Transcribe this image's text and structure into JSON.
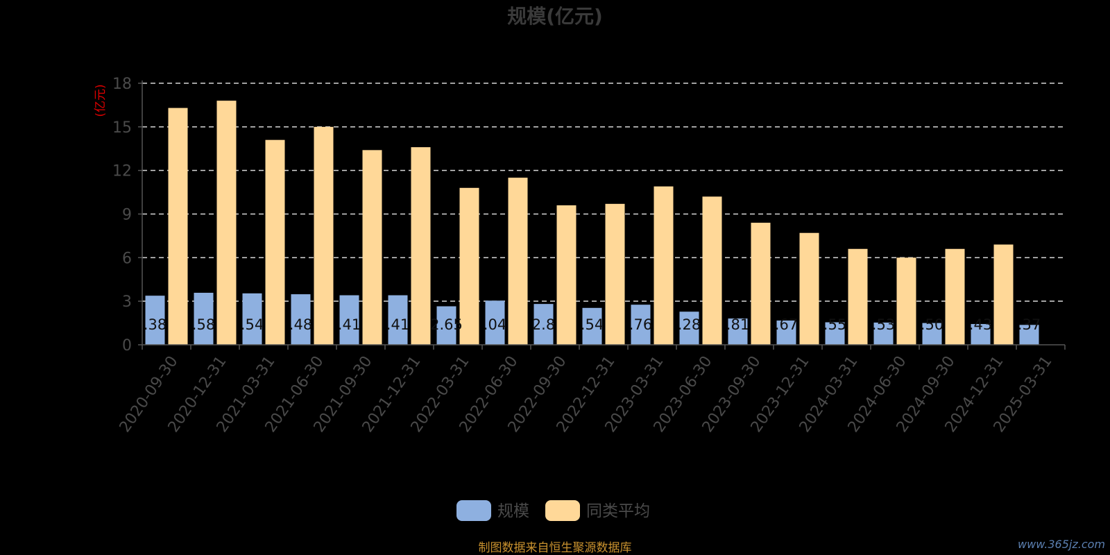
{
  "chart_data": {
    "type": "bar",
    "title": "规模(亿元)",
    "ylabel": "(亿元)",
    "ylim": [
      0,
      18
    ],
    "yticks": [
      0,
      3,
      6,
      9,
      12,
      15,
      18
    ],
    "grid": true,
    "legend_position": "bottom-center",
    "categories": [
      "2020-09-30",
      "2020-12-31",
      "2021-03-31",
      "2021-06-30",
      "2021-09-30",
      "2021-12-31",
      "2022-03-31",
      "2022-06-30",
      "2022-09-30",
      "2022-12-31",
      "2023-03-31",
      "2023-06-30",
      "2023-09-30",
      "2023-12-31",
      "2024-03-31",
      "2024-06-30",
      "2024-09-30",
      "2024-12-31",
      "2025-03-31"
    ],
    "series": [
      {
        "name": "规模",
        "color": "#8eb0e0",
        "values": [
          3.38,
          3.58,
          3.54,
          3.48,
          3.41,
          3.41,
          2.65,
          3.04,
          2.81,
          2.54,
          2.76,
          2.28,
          1.81,
          1.67,
          1.55,
          1.53,
          1.5,
          1.43,
          1.37
        ],
        "labels": [
          ".38",
          ".58",
          ".54",
          ".48",
          ".41",
          ".41",
          "2.65",
          ".04",
          "2.8",
          ".54",
          ".76",
          ".28",
          ".81",
          ".67",
          ".55",
          ".53",
          ".50",
          ".43",
          ".37"
        ]
      },
      {
        "name": "同类平均",
        "color": "#ffd898",
        "values": [
          16.3,
          16.8,
          14.1,
          15.0,
          13.4,
          13.6,
          10.8,
          11.5,
          9.6,
          9.7,
          10.9,
          10.2,
          8.4,
          7.7,
          6.6,
          6.0,
          6.6,
          6.9,
          null
        ]
      }
    ]
  },
  "footer": {
    "source": "制图数据来自恒生聚源数据库",
    "watermark": "www.365jz.com"
  }
}
